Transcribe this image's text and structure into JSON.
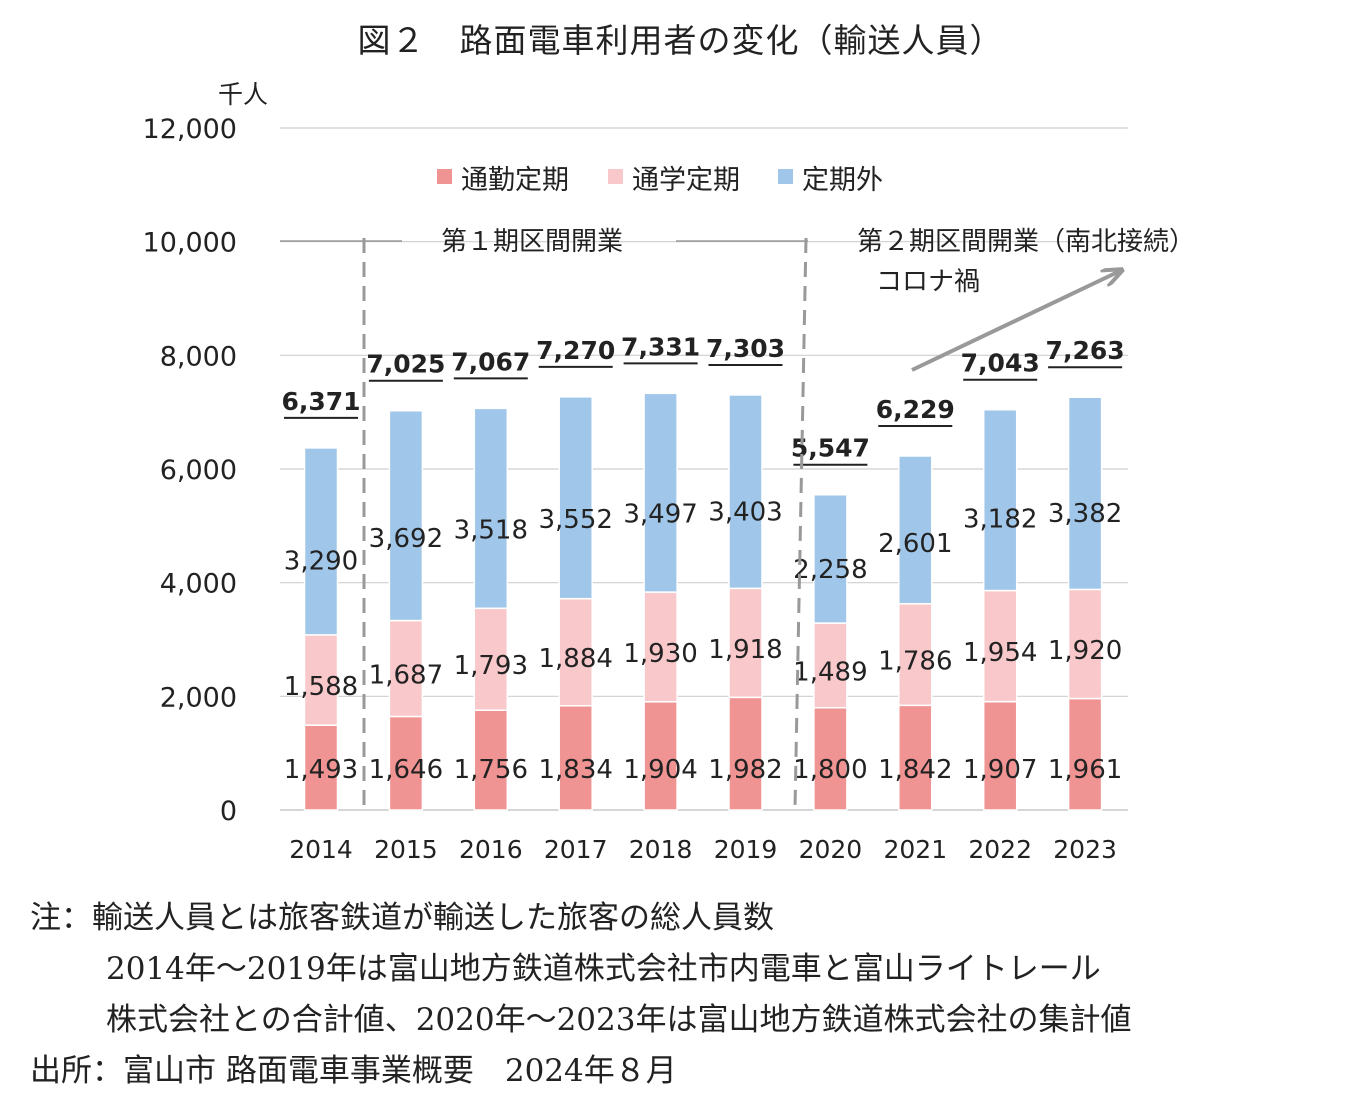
{
  "chart_data": {
    "type": "bar",
    "stacked": true,
    "title": "図２　路面電車利用者の変化（輸送人員）",
    "unit_label": "千人",
    "categories": [
      "2014",
      "2015",
      "2016",
      "2017",
      "2018",
      "2019",
      "2020",
      "2021",
      "2022",
      "2023"
    ],
    "ylim": [
      0,
      12000
    ],
    "yticks": [
      0,
      2000,
      4000,
      6000,
      8000,
      10000,
      12000
    ],
    "ytick_labels": [
      "0",
      "2,000",
      "4,000",
      "6,000",
      "8,000",
      "10,000",
      "12,000"
    ],
    "grid": true,
    "legend_position": "top-center",
    "series": [
      {
        "name": "通勤定期",
        "color": "#f09393",
        "values": [
          1493,
          1646,
          1756,
          1834,
          1904,
          1982,
          1800,
          1842,
          1907,
          1961
        ],
        "labels": [
          "1,493",
          "1,646",
          "1,756",
          "1,834",
          "1,904",
          "1,982",
          "1,800",
          "1,842",
          "1,907",
          "1,961"
        ]
      },
      {
        "name": "通学定期",
        "color": "#f8c8ca",
        "values": [
          1588,
          1687,
          1793,
          1884,
          1930,
          1918,
          1489,
          1786,
          1954,
          1920
        ],
        "labels": [
          "1,588",
          "1,687",
          "1,793",
          "1,884",
          "1,930",
          "1,918",
          "1,489",
          "1,786",
          "1,954",
          "1,920"
        ]
      },
      {
        "name": "定期外",
        "color": "#a0c7e9",
        "values": [
          3290,
          3692,
          3518,
          3552,
          3497,
          3403,
          2258,
          2601,
          3182,
          3382
        ],
        "labels": [
          "3,290",
          "3,692",
          "3,518",
          "3,552",
          "3,497",
          "3,403",
          "2,258",
          "2,601",
          "3,182",
          "3,382"
        ]
      }
    ],
    "totals": [
      6371,
      7025,
      7067,
      7270,
      7331,
      7303,
      5547,
      6229,
      7043,
      7263
    ],
    "total_labels": [
      "6,371",
      "7,025",
      "7,067",
      "7,270",
      "7,331",
      "7,303",
      "5,547",
      "6,229",
      "7,043",
      "7,263"
    ],
    "annotations": {
      "phase1": "第１期区間開業",
      "phase2": "第２期区間開業（南北接続）",
      "corona": "コロナ禍"
    }
  },
  "notes": [
    "注：輸送人員とは旅客鉄道が輸送した旅客の総人員数",
    "2014年〜2019年は富山地方鉄道株式会社市内電車と富山ライトレール",
    "株式会社との合計値、2020年〜2023年は富山地方鉄道株式会社の集計値",
    "出所：富山市 路面電車事業概要　2024年８月"
  ]
}
